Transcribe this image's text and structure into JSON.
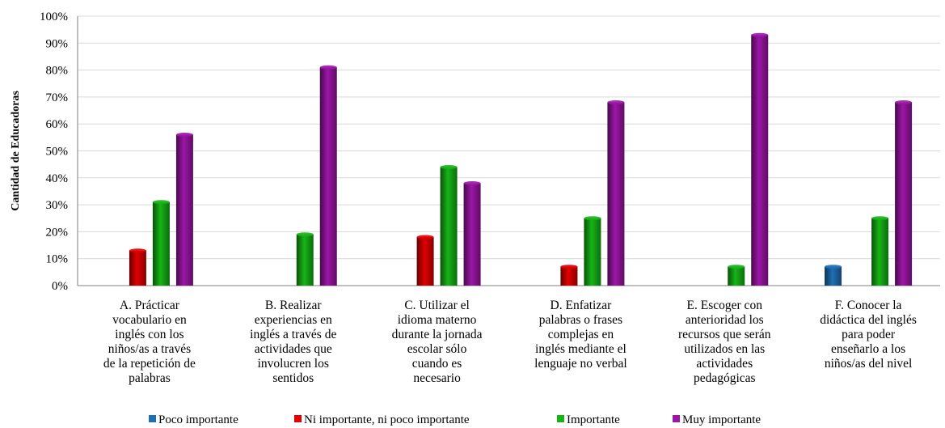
{
  "chart_data": {
    "type": "bar",
    "title": "",
    "xlabel": "",
    "ylabel": "Cantidad de Educadoras",
    "ylim": [
      0,
      100
    ],
    "yticks": [
      "0%",
      "10%",
      "20%",
      "30%",
      "40%",
      "50%",
      "60%",
      "70%",
      "80%",
      "90%",
      "100%"
    ],
    "grid": true,
    "legend_position": "bottom",
    "categories": [
      [
        "A. Prácticar",
        "vocabulario en",
        "inglés con los",
        "niños/as a través",
        "de la repetición de",
        "palabras"
      ],
      [
        "B. Realizar",
        "experiencias en",
        "inglés a través de",
        "actividades que",
        "involucren los",
        "sentidos"
      ],
      [
        "C. Utilizar el",
        "idioma materno",
        "durante la jornada",
        "escolar sólo",
        "cuando es",
        "necesario"
      ],
      [
        "D. Enfatizar",
        "palabras o frases",
        "complejas en",
        "inglés mediante el",
        "lenguaje no verbal"
      ],
      [
        "E. Escoger con",
        "anterioridad los",
        "recursos que serán",
        "utilizados en las",
        "actividades",
        "pedagógicas"
      ],
      [
        "F. Conocer la",
        "didáctica del inglés",
        "para poder",
        "enseñarlo a los",
        "niños/as del nivel"
      ]
    ],
    "series": [
      {
        "name": "Poco importante",
        "color": "#1f6fb5",
        "values": [
          0,
          0,
          0,
          0,
          0,
          7
        ]
      },
      {
        "name": "Ni importante, ni poco importante",
        "color": "#e00000",
        "values": [
          13,
          0,
          18,
          7,
          0,
          0
        ]
      },
      {
        "name": "Importante",
        "color": "#16b416",
        "values": [
          31,
          19,
          44,
          25,
          7,
          25
        ]
      },
      {
        "name": "Muy importante",
        "color": "#9c16a6",
        "values": [
          56,
          81,
          38,
          68,
          93,
          68
        ]
      }
    ]
  }
}
